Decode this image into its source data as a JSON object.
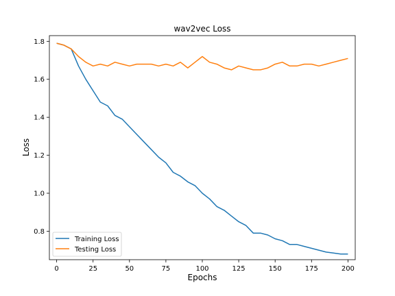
{
  "chart_data": {
    "type": "line",
    "title": "wav2vec Loss",
    "xlabel": "Epochs",
    "ylabel": "Loss",
    "xlim": [
      -5,
      205
    ],
    "ylim": [
      0.65,
      1.83
    ],
    "xticks": [
      0,
      25,
      50,
      75,
      100,
      125,
      150,
      175,
      200
    ],
    "yticks": [
      0.8,
      1.0,
      1.2,
      1.4,
      1.6,
      1.8
    ],
    "grid": false,
    "legend_position": "lower-left",
    "series": [
      {
        "name": "Training Loss",
        "color": "#1f77b4",
        "x": [
          0,
          5,
          10,
          15,
          20,
          25,
          30,
          35,
          40,
          45,
          50,
          55,
          60,
          65,
          70,
          75,
          80,
          85,
          90,
          95,
          100,
          105,
          110,
          115,
          120,
          125,
          130,
          135,
          140,
          145,
          150,
          155,
          160,
          165,
          170,
          175,
          180,
          185,
          190,
          195,
          200
        ],
        "values": [
          1.79,
          1.78,
          1.76,
          1.67,
          1.6,
          1.54,
          1.48,
          1.46,
          1.41,
          1.39,
          1.35,
          1.31,
          1.27,
          1.23,
          1.19,
          1.16,
          1.11,
          1.09,
          1.06,
          1.04,
          1.0,
          0.97,
          0.93,
          0.91,
          0.88,
          0.85,
          0.83,
          0.79,
          0.79,
          0.78,
          0.76,
          0.75,
          0.73,
          0.73,
          0.72,
          0.71,
          0.7,
          0.69,
          0.685,
          0.68,
          0.68
        ]
      },
      {
        "name": "Testing Loss",
        "color": "#ff7f0e",
        "x": [
          0,
          5,
          10,
          15,
          20,
          25,
          30,
          35,
          40,
          45,
          50,
          55,
          60,
          65,
          70,
          75,
          80,
          85,
          90,
          95,
          100,
          105,
          110,
          115,
          120,
          125,
          130,
          135,
          140,
          145,
          150,
          155,
          160,
          165,
          170,
          175,
          180,
          185,
          190,
          195,
          200
        ],
        "values": [
          1.79,
          1.78,
          1.76,
          1.72,
          1.69,
          1.67,
          1.68,
          1.67,
          1.69,
          1.68,
          1.67,
          1.68,
          1.68,
          1.68,
          1.67,
          1.68,
          1.67,
          1.69,
          1.66,
          1.69,
          1.72,
          1.69,
          1.68,
          1.66,
          1.65,
          1.67,
          1.66,
          1.65,
          1.65,
          1.66,
          1.68,
          1.69,
          1.67,
          1.67,
          1.68,
          1.68,
          1.67,
          1.68,
          1.69,
          1.7,
          1.71
        ]
      }
    ]
  }
}
